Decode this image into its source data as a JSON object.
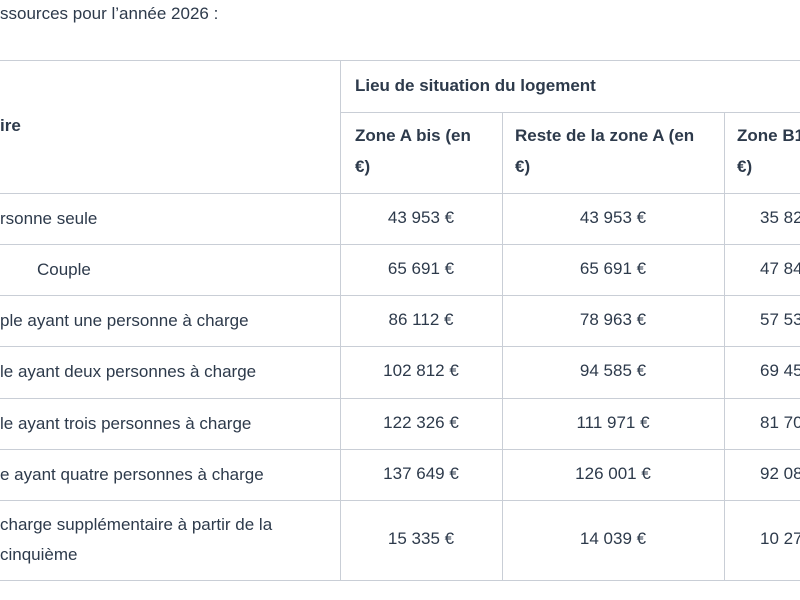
{
  "intro": "ssources pour l’année 2026 :",
  "table": {
    "row_header": "ire",
    "group_header": "Lieu de situation du logement",
    "columns": [
      [
        "Zone A bis (en",
        "€)"
      ],
      [
        "Reste de la zone A (en",
        "€)"
      ],
      [
        "Zone B1",
        "€)"
      ]
    ],
    "rows": [
      [
        "rsonne seule",
        "43 953 €",
        "43 953 €",
        "35 82"
      ],
      [
        "Couple",
        "65 691 €",
        "65 691 €",
        "47 84"
      ],
      [
        "ple ayant une personne à charge",
        "86 112 €",
        "78 963 €",
        "57 53"
      ],
      [
        "le ayant deux personnes à charge",
        "102 812 €",
        "94 585 €",
        "69 45"
      ],
      [
        "le ayant trois personnes à charge",
        "122 326 €",
        "111 971 €",
        "81 70"
      ],
      [
        "e ayant quatre personnes à charge",
        "137 649 €",
        "126 001 €",
        "92 08"
      ],
      [
        "charge supplémentaire à partir de la cinquième",
        "15 335 €",
        "14 039 €",
        "10 27"
      ]
    ]
  }
}
